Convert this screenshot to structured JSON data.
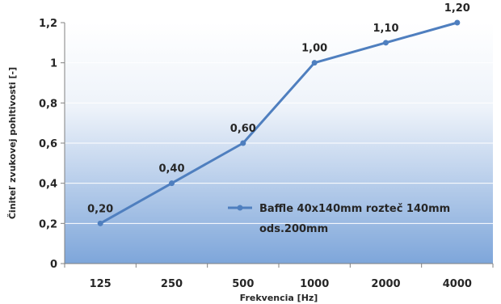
{
  "chart_data": {
    "type": "line",
    "title": "",
    "xlabel": "Frekvencia [Hz]",
    "ylabel": "Činiteľ zvukovej pohltivosti [-]",
    "categories": [
      "125",
      "250",
      "500",
      "1000",
      "2000",
      "4000"
    ],
    "y_ticks": [
      "0",
      "0,2",
      "0,4",
      "0,6",
      "0,8",
      "1",
      "1,2"
    ],
    "ylim": [
      0,
      1.2
    ],
    "grid": "horizontal",
    "legend_position": "inside-bottom-right",
    "colors": {
      "series": "#4F7FBF",
      "plot_bg_top": "#FFFFFF",
      "plot_bg_bottom": "#7EA6DA",
      "grid": "#FFFFFF",
      "axis": "#808080"
    },
    "series": [
      {
        "name": "Baffle 40x140mm rozteč 140mm ods.200mm",
        "legend_lines": [
          "Baffle 40x140mm rozteč 140mm",
          "ods.200mm"
        ],
        "values": [
          0.2,
          0.4,
          0.6,
          1.0,
          1.1,
          1.2
        ],
        "labels": [
          "0,20",
          "0,40",
          "0,60",
          "1,00",
          "1,10",
          "1,20"
        ]
      }
    ]
  }
}
